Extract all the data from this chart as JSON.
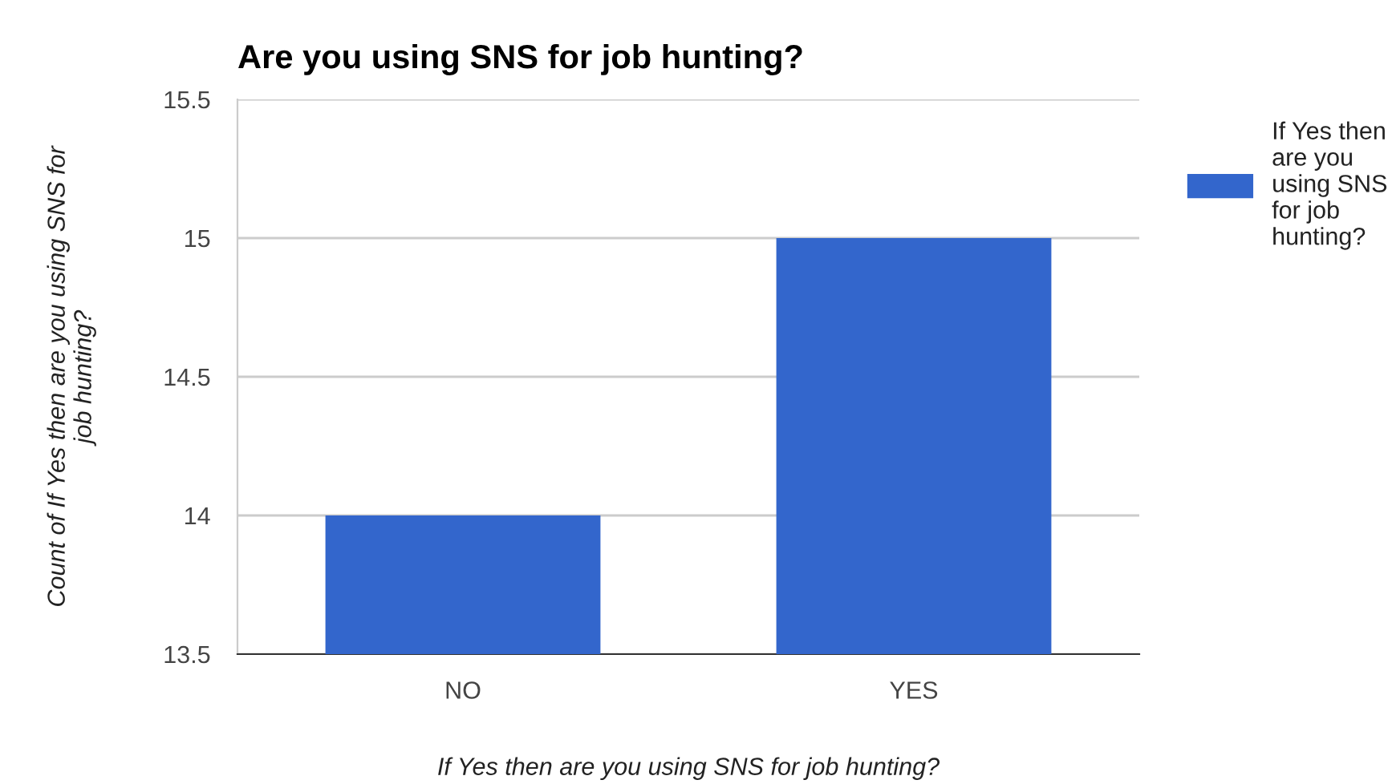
{
  "chart_data": {
    "type": "bar",
    "title": "Are you using SNS for job hunting?",
    "xlabel": "If Yes then are you using SNS for job hunting?",
    "ylabel": "Count of If Yes then are you using SNS for job hunting?",
    "categories": [
      "NO",
      "YES"
    ],
    "series": [
      {
        "name": "If Yes then are you using SNS for job hunting?",
        "color": "#3366cc",
        "values": [
          14,
          15
        ]
      }
    ],
    "ylim": [
      13.5,
      15.5
    ],
    "yticks": [
      13.5,
      14,
      14.5,
      15,
      15.5
    ],
    "grid": "y",
    "legend": "right"
  }
}
